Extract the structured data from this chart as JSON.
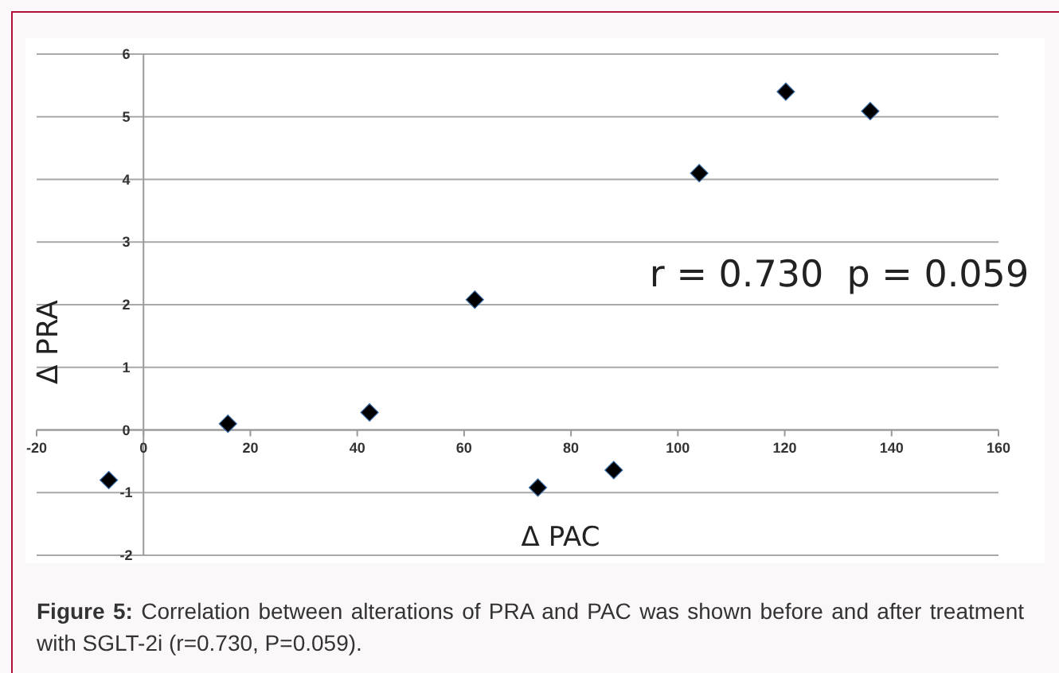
{
  "chart_data": {
    "type": "scatter",
    "xlabel": "Δ PAC",
    "ylabel": "Δ PRA",
    "x": [
      -6.5,
      15.8,
      42.3,
      62,
      73.8,
      88,
      104,
      120.2,
      136
    ],
    "series": [
      {
        "color": "#000000",
        "values": [
          -0.8,
          0.1,
          0.28,
          2.08,
          -0.92,
          -0.64,
          4.1,
          5.4,
          5.09
        ]
      }
    ],
    "xlim": [
      -20,
      160
    ],
    "xticks": [
      -20,
      0,
      20,
      40,
      60,
      80,
      100,
      120,
      140,
      160
    ],
    "ylim": [
      -2,
      6
    ],
    "yticks": [
      -2,
      -1,
      0,
      1,
      2,
      3,
      4,
      5,
      6
    ],
    "grid": "y",
    "marker": "diamond",
    "legend": false,
    "annotations": [
      "r = 0.730  p = 0.059",
      "Figure 5:",
      "Correlation between alterations of PRA and PAC was shown before and after treatment with SGLT-2i (r=0.730, P=0.059)."
    ]
  }
}
